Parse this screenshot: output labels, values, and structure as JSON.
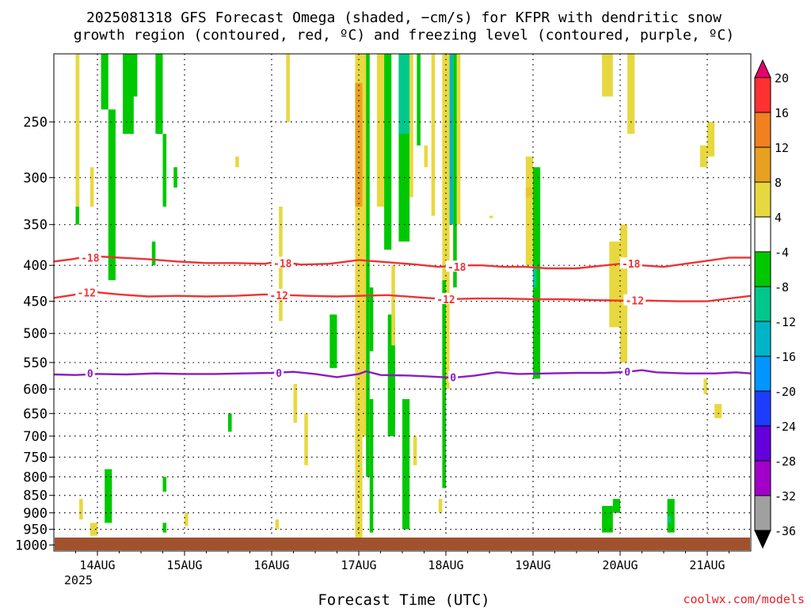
{
  "chart_data": {
    "type": "heatmap",
    "title_line1": "2025081318 GFS Forecast Omega (shaded, −cm/s) for KFPR with dendritic snow",
    "title_line2": "growth region (contoured, red, ºC) and freezing level (contoured, purple, ºC)",
    "xlabel": "Forecast Time (UTC)",
    "ylabel": "",
    "watermark": "coolwx.com/models",
    "year_label": "2025",
    "x_range_hours": [
      -6,
      186
    ],
    "y_range_hpa": [
      1020,
      200
    ],
    "y_scale": "log-pressure",
    "grid": true,
    "x_ticks": [
      {
        "hour": 6,
        "label": "14AUG"
      },
      {
        "hour": 30,
        "label": "15AUG"
      },
      {
        "hour": 54,
        "label": "16AUG"
      },
      {
        "hour": 78,
        "label": "17AUG"
      },
      {
        "hour": 102,
        "label": "18AUG"
      },
      {
        "hour": 126,
        "label": "19AUG"
      },
      {
        "hour": 150,
        "label": "20AUG"
      },
      {
        "hour": 174,
        "label": "21AUG"
      }
    ],
    "y_ticks": [
      250,
      300,
      350,
      400,
      450,
      500,
      550,
      600,
      650,
      700,
      750,
      800,
      850,
      900,
      950,
      1000
    ],
    "colorbar": {
      "labels": [
        "20",
        "16",
        "12",
        "8",
        "4",
        "-4",
        "-8",
        "-12",
        "-16",
        "-20",
        "-24",
        "-28",
        "-32",
        "-36"
      ],
      "colors": [
        "#e8006e",
        "#ff3030",
        "#f08020",
        "#e8a020",
        "#e8d840",
        "#ffffff",
        "#00c800",
        "#00c88c",
        "#00b4c8",
        "#0096ff",
        "#1e3cff",
        "#6400dc",
        "#a000c8",
        "#a0a0a0",
        "#000000"
      ]
    },
    "series": [
      {
        "name": "-18",
        "color": "#ee3333",
        "points": [
          [
            -6,
            395
          ],
          [
            -1,
            392
          ],
          [
            4,
            388
          ],
          [
            12,
            390
          ],
          [
            20,
            392
          ],
          [
            28,
            395
          ],
          [
            36,
            397
          ],
          [
            44,
            397
          ],
          [
            52,
            398
          ],
          [
            56,
            395
          ],
          [
            62,
            399
          ],
          [
            70,
            398
          ],
          [
            78,
            393
          ],
          [
            86,
            396
          ],
          [
            94,
            399
          ],
          [
            100,
            402
          ],
          [
            106,
            400
          ],
          [
            112,
            400
          ],
          [
            118,
            402
          ],
          [
            124,
            402
          ],
          [
            130,
            404
          ],
          [
            138,
            404
          ],
          [
            144,
            401
          ],
          [
            150,
            398
          ],
          [
            156,
            400
          ],
          [
            162,
            402
          ],
          [
            168,
            398
          ],
          [
            174,
            394
          ],
          [
            180,
            390
          ],
          [
            186,
            390
          ]
        ]
      },
      {
        "name": "-12",
        "color": "#ee3333",
        "points": [
          [
            -6,
            445
          ],
          [
            -1,
            441
          ],
          [
            4,
            436
          ],
          [
            12,
            440
          ],
          [
            20,
            443
          ],
          [
            28,
            442
          ],
          [
            36,
            443
          ],
          [
            44,
            442
          ],
          [
            52,
            440
          ],
          [
            58,
            441
          ],
          [
            64,
            442
          ],
          [
            72,
            443
          ],
          [
            78,
            442
          ],
          [
            86,
            441
          ],
          [
            94,
            444
          ],
          [
            102,
            447
          ],
          [
            110,
            446
          ],
          [
            118,
            446
          ],
          [
            126,
            447
          ],
          [
            134,
            447
          ],
          [
            142,
            448
          ],
          [
            150,
            449
          ],
          [
            158,
            449
          ],
          [
            166,
            450
          ],
          [
            174,
            450
          ],
          [
            180,
            446
          ],
          [
            186,
            442
          ]
        ]
      },
      {
        "name": "0",
        "color": "#8c1cc0",
        "points": [
          [
            -6,
            572
          ],
          [
            0,
            573
          ],
          [
            6,
            571
          ],
          [
            14,
            572
          ],
          [
            22,
            570
          ],
          [
            30,
            571
          ],
          [
            38,
            571
          ],
          [
            46,
            570
          ],
          [
            54,
            569
          ],
          [
            60,
            567
          ],
          [
            66,
            571
          ],
          [
            72,
            577
          ],
          [
            78,
            571
          ],
          [
            80,
            566
          ],
          [
            84,
            573
          ],
          [
            92,
            574
          ],
          [
            98,
            576
          ],
          [
            104,
            578
          ],
          [
            110,
            574
          ],
          [
            116,
            568
          ],
          [
            122,
            571
          ],
          [
            130,
            570
          ],
          [
            138,
            569
          ],
          [
            146,
            569
          ],
          [
            152,
            567
          ],
          [
            156,
            564
          ],
          [
            160,
            568
          ],
          [
            168,
            570
          ],
          [
            176,
            570
          ],
          [
            182,
            568
          ],
          [
            186,
            570
          ]
        ]
      }
    ],
    "contour_labels": [
      {
        "series": "-18",
        "hour": 4,
        "p": 390
      },
      {
        "series": "-18",
        "hour": 57,
        "p": 397
      },
      {
        "series": "-18",
        "hour": 105,
        "p": 402
      },
      {
        "series": "-18",
        "hour": 153,
        "p": 398
      },
      {
        "series": "-12",
        "hour": 3,
        "p": 437
      },
      {
        "series": "-12",
        "hour": 56,
        "p": 441
      },
      {
        "series": "-12",
        "hour": 102,
        "p": 447
      },
      {
        "series": "-12",
        "hour": 154,
        "p": 449
      },
      {
        "series": "0",
        "hour": 4,
        "p": 570
      },
      {
        "series": "0",
        "hour": 56,
        "p": 569
      },
      {
        "series": "0",
        "hour": 104,
        "p": 577
      },
      {
        "series": "0",
        "hour": 152,
        "p": 567
      }
    ],
    "shaded_regions": [
      {
        "value": -8,
        "hour": [
          0,
          1
        ],
        "p": [
          200,
          350
        ]
      },
      {
        "value": -8,
        "hour": [
          7,
          9
        ],
        "p": [
          200,
          240
        ]
      },
      {
        "value": -8,
        "hour": [
          9,
          11
        ],
        "p": [
          240,
          420
        ]
      },
      {
        "value": -8,
        "hour": [
          13,
          16
        ],
        "p": [
          200,
          260
        ]
      },
      {
        "value": -8,
        "hour": [
          15,
          17
        ],
        "p": [
          200,
          230
        ]
      },
      {
        "value": -8,
        "hour": [
          22,
          24
        ],
        "p": [
          200,
          260
        ]
      },
      {
        "value": -8,
        "hour": [
          24,
          25
        ],
        "p": [
          260,
          330
        ]
      },
      {
        "value": -8,
        "hour": [
          27,
          28
        ],
        "p": [
          290,
          310
        ]
      },
      {
        "value": 4,
        "hour": [
          0,
          1
        ],
        "p": [
          200,
          330
        ]
      },
      {
        "value": 4,
        "hour": [
          4,
          5
        ],
        "p": [
          290,
          330
        ]
      },
      {
        "value": 4,
        "hour": [
          1,
          2
        ],
        "p": [
          860,
          920
        ]
      },
      {
        "value": -8,
        "hour": [
          8,
          10
        ],
        "p": [
          780,
          930
        ]
      },
      {
        "value": 4,
        "hour": [
          4,
          6
        ],
        "p": [
          930,
          970
        ]
      },
      {
        "value": -8,
        "hour": [
          24,
          25
        ],
        "p": [
          930,
          960
        ]
      },
      {
        "value": -8,
        "hour": [
          24,
          25
        ],
        "p": [
          800,
          840
        ]
      },
      {
        "value": -8,
        "hour": [
          21,
          22
        ],
        "p": [
          370,
          400
        ]
      },
      {
        "value": 4,
        "hour": [
          30,
          31
        ],
        "p": [
          900,
          940
        ]
      },
      {
        "value": 4,
        "hour": [
          44,
          45
        ],
        "p": [
          280,
          290
        ]
      },
      {
        "value": -8,
        "hour": [
          42,
          43
        ],
        "p": [
          650,
          690
        ]
      },
      {
        "value": 4,
        "hour": [
          55,
          56
        ],
        "p": [
          920,
          950
        ]
      },
      {
        "value": 4,
        "hour": [
          58,
          59
        ],
        "p": [
          200,
          250
        ]
      },
      {
        "value": 4,
        "hour": [
          56,
          57
        ],
        "p": [
          330,
          480
        ]
      },
      {
        "value": 4,
        "hour": [
          60,
          61
        ],
        "p": [
          590,
          670
        ]
      },
      {
        "value": 4,
        "hour": [
          63,
          64
        ],
        "p": [
          650,
          770
        ]
      },
      {
        "value": -8,
        "hour": [
          70,
          72
        ],
        "p": [
          470,
          560
        ]
      },
      {
        "value": 4,
        "hour": [
          77,
          79
        ],
        "p": [
          200,
          1000
        ]
      },
      {
        "value": 12,
        "hour": [
          77,
          79
        ],
        "p": [
          220,
          330
        ]
      },
      {
        "value": 4,
        "hour": [
          79,
          80
        ],
        "p": [
          200,
          700
        ]
      },
      {
        "value": -8,
        "hour": [
          80,
          81
        ],
        "p": [
          200,
          800
        ]
      },
      {
        "value": -8,
        "hour": [
          81,
          82
        ],
        "p": [
          430,
          530
        ]
      },
      {
        "value": -8,
        "hour": [
          81,
          82
        ],
        "p": [
          620,
          960
        ]
      },
      {
        "value": 4,
        "hour": [
          83,
          85
        ],
        "p": [
          200,
          330
        ]
      },
      {
        "value": -8,
        "hour": [
          85,
          87
        ],
        "p": [
          200,
          380
        ]
      },
      {
        "value": -8,
        "hour": [
          86,
          88
        ],
        "p": [
          470,
          700
        ]
      },
      {
        "value": -8,
        "hour": [
          87,
          88
        ],
        "p": [
          560,
          680
        ]
      },
      {
        "value": 4,
        "hour": [
          87,
          88
        ],
        "p": [
          400,
          520
        ]
      },
      {
        "value": -8,
        "hour": [
          89,
          92
        ],
        "p": [
          200,
          370
        ]
      },
      {
        "value": -12,
        "hour": [
          89,
          92
        ],
        "p": [
          200,
          260
        ]
      },
      {
        "value": -8,
        "hour": [
          90,
          92
        ],
        "p": [
          620,
          950
        ]
      },
      {
        "value": 4,
        "hour": [
          92,
          93
        ],
        "p": [
          200,
          320
        ]
      },
      {
        "value": 4,
        "hour": [
          93,
          94
        ],
        "p": [
          700,
          770
        ]
      },
      {
        "value": -8,
        "hour": [
          94,
          95
        ],
        "p": [
          200,
          270
        ]
      },
      {
        "value": 4,
        "hour": [
          96,
          97
        ],
        "p": [
          270,
          290
        ]
      },
      {
        "value": 4,
        "hour": [
          98,
          99
        ],
        "p": [
          200,
          340
        ]
      },
      {
        "value": 4,
        "hour": [
          100,
          101
        ],
        "p": [
          860,
          900
        ]
      },
      {
        "value": 4,
        "hour": [
          101,
          103
        ],
        "p": [
          200,
          600
        ]
      },
      {
        "value": -8,
        "hour": [
          101,
          102
        ],
        "p": [
          420,
          830
        ]
      },
      {
        "value": -16,
        "hour": [
          103,
          104
        ],
        "p": [
          200,
          350
        ]
      },
      {
        "value": -8,
        "hour": [
          104,
          105
        ],
        "p": [
          200,
          430
        ]
      },
      {
        "value": 4,
        "hour": [
          105,
          106
        ],
        "p": [
          200,
          350
        ]
      },
      {
        "value": 4,
        "hour": [
          114,
          115
        ],
        "p": [
          340,
          340
        ]
      },
      {
        "value": 4,
        "hour": [
          124,
          126
        ],
        "p": [
          280,
          400
        ]
      },
      {
        "value": 8,
        "hour": [
          124,
          126
        ],
        "p": [
          310,
          320
        ]
      },
      {
        "value": -8,
        "hour": [
          126,
          128
        ],
        "p": [
          290,
          580
        ]
      },
      {
        "value": -12,
        "hour": [
          126,
          127
        ],
        "p": [
          400,
          430
        ]
      },
      {
        "value": 4,
        "hour": [
          145,
          148
        ],
        "p": [
          200,
          230
        ]
      },
      {
        "value": 4,
        "hour": [
          152,
          154
        ],
        "p": [
          200,
          260
        ]
      },
      {
        "value": 4,
        "hour": [
          147,
          150
        ],
        "p": [
          370,
          490
        ]
      },
      {
        "value": 4,
        "hour": [
          150,
          152
        ],
        "p": [
          350,
          550
        ]
      },
      {
        "value": -8,
        "hour": [
          145,
          148
        ],
        "p": [
          880,
          960
        ]
      },
      {
        "value": -8,
        "hour": [
          148,
          150
        ],
        "p": [
          860,
          900
        ]
      },
      {
        "value": -8,
        "hour": [
          163,
          165
        ],
        "p": [
          860,
          960
        ]
      },
      {
        "value": -12,
        "hour": [
          163,
          164
        ],
        "p": [
          910,
          930
        ]
      },
      {
        "value": 4,
        "hour": [
          174,
          176
        ],
        "p": [
          250,
          280
        ]
      },
      {
        "value": 4,
        "hour": [
          172,
          174
        ],
        "p": [
          270,
          290
        ]
      },
      {
        "value": 4,
        "hour": [
          173,
          174
        ],
        "p": [
          580,
          610
        ]
      },
      {
        "value": 4,
        "hour": [
          176,
          178
        ],
        "p": [
          630,
          660
        ]
      }
    ]
  }
}
